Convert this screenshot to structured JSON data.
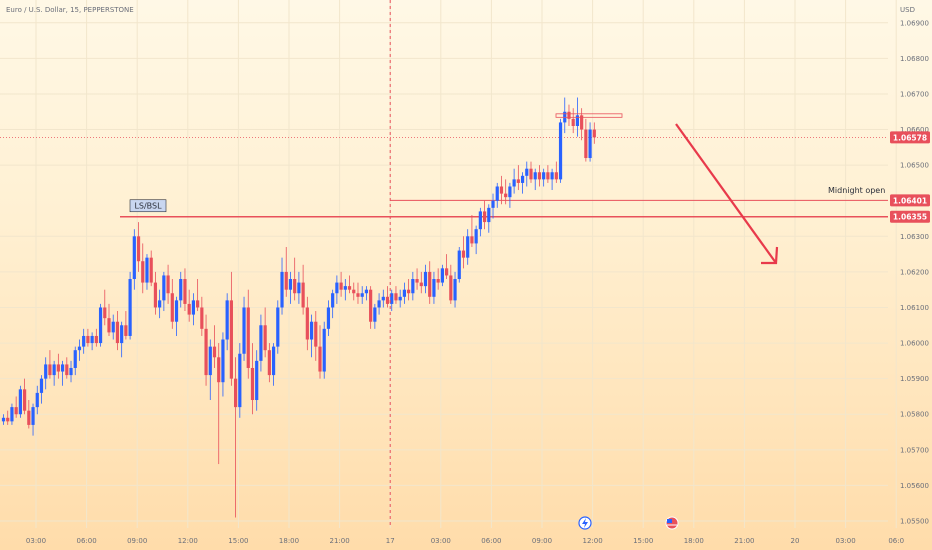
{
  "chart_data": {
    "type": "candlestick",
    "title": "Euro / U.S. Dollar, 15, PEPPERSTONE",
    "currency": "USD",
    "ylim": [
      1.055,
      1.0695
    ],
    "y_ticks": [
      "1.06900",
      "1.06800",
      "1.06700",
      "1.06600",
      "1.06500",
      "1.06300",
      "1.06200",
      "1.06100",
      "1.06000",
      "1.05900",
      "1.05800",
      "1.05700",
      "1.05600",
      "1.05500"
    ],
    "x_ticks": [
      "03:00",
      "06:00",
      "09:00",
      "12:00",
      "15:00",
      "18:00",
      "21:00",
      "17",
      "03:00",
      "06:00",
      "09:00",
      "12:00",
      "15:00",
      "18:00",
      "21:00",
      "20",
      "03:00",
      "06:0"
    ],
    "price_tags": [
      {
        "value": 1.06578,
        "label": "1.06578",
        "color": "#e8505b"
      },
      {
        "value": 1.06401,
        "label": "1.06401",
        "color": "#e8505b"
      },
      {
        "value": 1.06355,
        "label": "1.06355",
        "color": "#e8505b"
      }
    ],
    "annotations": {
      "ls_bsl_label": "LS/BSL",
      "ls_bsl_level": 1.06355,
      "midnight_open_label": "Midnight open",
      "midnight_open_level": 1.06401,
      "arrow_direction": "down"
    },
    "colors": {
      "up": "#2962ff",
      "down": "#e8505b",
      "grid": "#f2e6cc"
    },
    "candles": [
      [
        1.0578,
        1.058,
        1.0577,
        1.0579
      ],
      [
        1.0579,
        1.0581,
        1.0577,
        1.0578
      ],
      [
        1.0578,
        1.0583,
        1.0577,
        1.0582
      ],
      [
        1.0582,
        1.0585,
        1.0579,
        1.058
      ],
      [
        1.058,
        1.0588,
        1.0579,
        1.0587
      ],
      [
        1.0587,
        1.059,
        1.058,
        1.0581
      ],
      [
        1.0581,
        1.0584,
        1.0576,
        1.0577
      ],
      [
        1.0577,
        1.0583,
        1.0574,
        1.0582
      ],
      [
        1.0582,
        1.0588,
        1.058,
        1.0586
      ],
      [
        1.0586,
        1.0591,
        1.0583,
        1.059
      ],
      [
        1.059,
        1.0596,
        1.0587,
        1.0594
      ],
      [
        1.0594,
        1.0598,
        1.059,
        1.0591
      ],
      [
        1.0591,
        1.0595,
        1.0588,
        1.0594
      ],
      [
        1.0594,
        1.0597,
        1.059,
        1.0592
      ],
      [
        1.0592,
        1.0595,
        1.0588,
        1.0594
      ],
      [
        1.0594,
        1.0596,
        1.059,
        1.0591
      ],
      [
        1.0591,
        1.0595,
        1.0589,
        1.0593
      ],
      [
        1.0593,
        1.0599,
        1.0591,
        1.0598
      ],
      [
        1.0598,
        1.0601,
        1.0595,
        1.0599
      ],
      [
        1.0599,
        1.0604,
        1.0597,
        1.0602
      ],
      [
        1.0602,
        1.0604,
        1.0599,
        1.06
      ],
      [
        1.06,
        1.0603,
        1.0598,
        1.0602
      ],
      [
        1.0602,
        1.0604,
        1.0599,
        1.06
      ],
      [
        1.06,
        1.0611,
        1.0599,
        1.061
      ],
      [
        1.061,
        1.0615,
        1.0605,
        1.0607
      ],
      [
        1.0607,
        1.0611,
        1.0602,
        1.0603
      ],
      [
        1.0603,
        1.0608,
        1.0601,
        1.0606
      ],
      [
        1.0606,
        1.0609,
        1.0598,
        1.06
      ],
      [
        1.06,
        1.0606,
        1.0596,
        1.0605
      ],
      [
        1.0605,
        1.0609,
        1.0601,
        1.0602
      ],
      [
        1.0602,
        1.062,
        1.0601,
        1.0618
      ],
      [
        1.0618,
        1.0632,
        1.0615,
        1.063
      ],
      [
        1.063,
        1.0634,
        1.062,
        1.0623
      ],
      [
        1.0623,
        1.0628,
        1.0614,
        1.0617
      ],
      [
        1.0617,
        1.0625,
        1.0615,
        1.0624
      ],
      [
        1.0624,
        1.0626,
        1.0616,
        1.0617
      ],
      [
        1.0617,
        1.062,
        1.0608,
        1.061
      ],
      [
        1.061,
        1.0615,
        1.0607,
        1.0612
      ],
      [
        1.0612,
        1.062,
        1.0609,
        1.0619
      ],
      [
        1.0619,
        1.0622,
        1.0611,
        1.0614
      ],
      [
        1.0614,
        1.0618,
        1.0604,
        1.0606
      ],
      [
        1.0606,
        1.0613,
        1.0602,
        1.0612
      ],
      [
        1.0612,
        1.062,
        1.061,
        1.0618
      ],
      [
        1.0618,
        1.0621,
        1.0609,
        1.0611
      ],
      [
        1.0611,
        1.0615,
        1.0606,
        1.0608
      ],
      [
        1.0608,
        1.0614,
        1.0605,
        1.0612
      ],
      [
        1.0612,
        1.0618,
        1.0609,
        1.061
      ],
      [
        1.061,
        1.0613,
        1.0602,
        1.0604
      ],
      [
        1.0604,
        1.0608,
        1.0588,
        1.0591
      ],
      [
        1.0591,
        1.0601,
        1.0584,
        1.0599
      ],
      [
        1.0599,
        1.0605,
        1.0593,
        1.0596
      ],
      [
        1.0596,
        1.06,
        1.0566,
        1.0589
      ],
      [
        1.0589,
        1.0603,
        1.0585,
        1.0601
      ],
      [
        1.0601,
        1.0614,
        1.0598,
        1.0612
      ],
      [
        1.0612,
        1.062,
        1.0588,
        1.059
      ],
      [
        1.059,
        1.0596,
        1.0551,
        1.0582
      ],
      [
        1.0582,
        1.06,
        1.0579,
        1.0597
      ],
      [
        1.0597,
        1.0613,
        1.0595,
        1.061
      ],
      [
        1.061,
        1.0615,
        1.059,
        1.0593
      ],
      [
        1.0593,
        1.06,
        1.058,
        1.0584
      ],
      [
        1.0584,
        1.0598,
        1.0581,
        1.0595
      ],
      [
        1.0595,
        1.0608,
        1.0592,
        1.0605
      ],
      [
        1.0605,
        1.061,
        1.0596,
        1.0598
      ],
      [
        1.0598,
        1.06,
        1.0589,
        1.0591
      ],
      [
        1.0591,
        1.06,
        1.0588,
        1.0599
      ],
      [
        1.0599,
        1.0612,
        1.0597,
        1.061
      ],
      [
        1.061,
        1.0624,
        1.0608,
        1.062
      ],
      [
        1.062,
        1.0627,
        1.0613,
        1.0615
      ],
      [
        1.0615,
        1.062,
        1.0611,
        1.0618
      ],
      [
        1.0618,
        1.0624,
        1.0612,
        1.0614
      ],
      [
        1.0614,
        1.062,
        1.0611,
        1.0617
      ],
      [
        1.0617,
        1.0622,
        1.0608,
        1.061
      ],
      [
        1.061,
        1.0613,
        1.0598,
        1.0601
      ],
      [
        1.0601,
        1.0608,
        1.0596,
        1.0606
      ],
      [
        1.0606,
        1.0609,
        1.0595,
        1.0599
      ],
      [
        1.0599,
        1.0605,
        1.059,
        1.0592
      ],
      [
        1.0592,
        1.0606,
        1.059,
        1.0604
      ],
      [
        1.0604,
        1.0612,
        1.0602,
        1.061
      ],
      [
        1.061,
        1.0615,
        1.0607,
        1.0614
      ],
      [
        1.0614,
        1.0619,
        1.0611,
        1.0617
      ],
      [
        1.0617,
        1.062,
        1.0613,
        1.0615
      ],
      [
        1.0615,
        1.0618,
        1.0612,
        1.0616
      ],
      [
        1.0616,
        1.0619,
        1.0614,
        1.0615
      ],
      [
        1.0615,
        1.0617,
        1.0612,
        1.0614
      ],
      [
        1.0614,
        1.0617,
        1.0611,
        1.0613
      ],
      [
        1.0613,
        1.0616,
        1.0611,
        1.0614
      ],
      [
        1.0614,
        1.0616,
        1.0612,
        1.0615
      ],
      [
        1.0615,
        1.0616,
        1.0604,
        1.0606
      ],
      [
        1.0606,
        1.0611,
        1.0604,
        1.061
      ],
      [
        1.061,
        1.0614,
        1.0608,
        1.0612
      ],
      [
        1.0612,
        1.0615,
        1.061,
        1.0613
      ],
      [
        1.0613,
        1.0616,
        1.061,
        1.0611
      ],
      [
        1.0611,
        1.0615,
        1.0609,
        1.0614
      ],
      [
        1.0614,
        1.0616,
        1.0611,
        1.0612
      ],
      [
        1.0612,
        1.0615,
        1.061,
        1.0613
      ],
      [
        1.0613,
        1.0617,
        1.0611,
        1.0615
      ],
      [
        1.0615,
        1.0618,
        1.0612,
        1.0614
      ],
      [
        1.0614,
        1.062,
        1.0612,
        1.0618
      ],
      [
        1.0618,
        1.0621,
        1.0615,
        1.0617
      ],
      [
        1.0617,
        1.062,
        1.0614,
        1.0616
      ],
      [
        1.0616,
        1.0622,
        1.0614,
        1.062
      ],
      [
        1.062,
        1.0623,
        1.0611,
        1.0613
      ],
      [
        1.0613,
        1.062,
        1.0611,
        1.0618
      ],
      [
        1.0618,
        1.0621,
        1.0615,
        1.0617
      ],
      [
        1.0617,
        1.0622,
        1.0616,
        1.0621
      ],
      [
        1.0621,
        1.0625,
        1.0618,
        1.0619
      ],
      [
        1.0619,
        1.0622,
        1.0611,
        1.0612
      ],
      [
        1.0612,
        1.062,
        1.061,
        1.0618
      ],
      [
        1.0618,
        1.0627,
        1.0617,
        1.0626
      ],
      [
        1.0626,
        1.063,
        1.0621,
        1.0624
      ],
      [
        1.0624,
        1.0632,
        1.0622,
        1.063
      ],
      [
        1.063,
        1.0636,
        1.0627,
        1.0628
      ],
      [
        1.0628,
        1.0633,
        1.0625,
        1.0632
      ],
      [
        1.0632,
        1.0638,
        1.063,
        1.0637
      ],
      [
        1.0637,
        1.064,
        1.0632,
        1.0634
      ],
      [
        1.0634,
        1.0639,
        1.0631,
        1.0638
      ],
      [
        1.0638,
        1.0642,
        1.0635,
        1.064
      ],
      [
        1.064,
        1.0645,
        1.0638,
        1.0644
      ],
      [
        1.0644,
        1.0647,
        1.0639,
        1.0642
      ],
      [
        1.0642,
        1.0646,
        1.0639,
        1.0641
      ],
      [
        1.0641,
        1.0645,
        1.0638,
        1.0644
      ],
      [
        1.0644,
        1.0649,
        1.0642,
        1.0646
      ],
      [
        1.0646,
        1.065,
        1.0643,
        1.0645
      ],
      [
        1.0645,
        1.0648,
        1.0642,
        1.0647
      ],
      [
        1.0647,
        1.0651,
        1.0644,
        1.0649
      ],
      [
        1.0649,
        1.0651,
        1.0645,
        1.0646
      ],
      [
        1.0646,
        1.0649,
        1.0643,
        1.0648
      ],
      [
        1.0648,
        1.065,
        1.0644,
        1.0646
      ],
      [
        1.0646,
        1.0649,
        1.0644,
        1.0648
      ],
      [
        1.0648,
        1.065,
        1.0645,
        1.0646
      ],
      [
        1.0646,
        1.0649,
        1.0643,
        1.0648
      ],
      [
        1.0648,
        1.0651,
        1.0645,
        1.0646
      ],
      [
        1.0646,
        1.0663,
        1.0645,
        1.0662
      ],
      [
        1.0662,
        1.0669,
        1.0659,
        1.0665
      ],
      [
        1.0665,
        1.0667,
        1.0661,
        1.0663
      ],
      [
        1.0663,
        1.0666,
        1.0659,
        1.0661
      ],
      [
        1.0661,
        1.0669,
        1.0658,
        1.0664
      ],
      [
        1.0664,
        1.0666,
        1.0657,
        1.066
      ],
      [
        1.066,
        1.0663,
        1.0651,
        1.0652
      ],
      [
        1.0652,
        1.0662,
        1.0651,
        1.066
      ],
      [
        1.066,
        1.0662,
        1.0656,
        1.06578
      ]
    ]
  }
}
